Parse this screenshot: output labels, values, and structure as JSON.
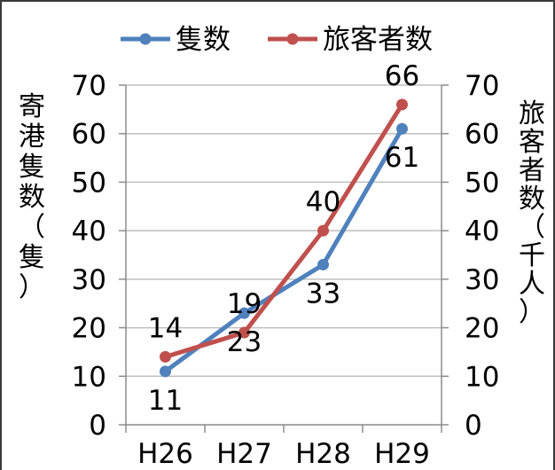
{
  "chart_data": {
    "type": "line",
    "categories": [
      "H26",
      "H27",
      "H28",
      "H29"
    ],
    "series": [
      {
        "name": "隻数",
        "axis": "left",
        "color": "#4F81BD",
        "values": [
          11,
          23,
          33,
          61
        ],
        "labels": [
          "11",
          "23",
          "33",
          "61"
        ],
        "label_pos": "below"
      },
      {
        "name": "旅客者数",
        "axis": "right",
        "color": "#C0504D",
        "values": [
          14,
          19,
          40,
          66
        ],
        "labels": [
          "14",
          "19",
          "40",
          "66"
        ],
        "label_pos": "above"
      }
    ],
    "ylabel_left": [
      "寄",
      "港",
      "隻",
      "数",
      "（",
      "隻",
      "）"
    ],
    "ylabel_right": [
      "旅",
      "客",
      "者",
      "数",
      "（",
      "千",
      "人",
      "）"
    ],
    "ylim_left": [
      0,
      70
    ],
    "ylim_right": [
      0,
      70
    ],
    "yticks": [
      "0",
      "10",
      "20",
      "30",
      "40",
      "50",
      "60",
      "70"
    ],
    "grid": "horizontal",
    "legend": "top"
  }
}
